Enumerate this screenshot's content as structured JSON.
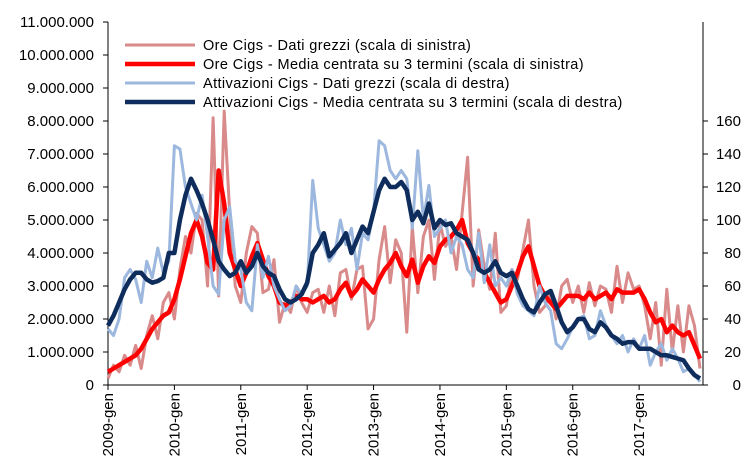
{
  "chart_data": {
    "type": "line",
    "categories": [
      "2009-gen",
      null,
      null,
      null,
      null,
      null,
      null,
      null,
      null,
      null,
      null,
      null,
      "2010-gen",
      null,
      null,
      null,
      null,
      null,
      null,
      null,
      null,
      null,
      null,
      null,
      "2011-gen",
      null,
      null,
      null,
      null,
      null,
      null,
      null,
      null,
      null,
      null,
      null,
      "2012-gen",
      null,
      null,
      null,
      null,
      null,
      null,
      null,
      null,
      null,
      null,
      null,
      "2013-gen",
      null,
      null,
      null,
      null,
      null,
      null,
      null,
      null,
      null,
      null,
      null,
      "2014-gen",
      null,
      null,
      null,
      null,
      null,
      null,
      null,
      null,
      null,
      null,
      null,
      "2015-gen",
      null,
      null,
      null,
      null,
      null,
      null,
      null,
      null,
      null,
      null,
      null,
      "2016-gen",
      null,
      null,
      null,
      null,
      null,
      null,
      null,
      null,
      null,
      null,
      null,
      "2017-gen",
      null,
      null,
      null,
      null,
      null,
      null,
      null,
      null,
      null,
      null,
      null
    ],
    "ylim": [
      0,
      11000000
    ],
    "yticks": [
      0,
      {
        "value": 1000000,
        "label": "1.000.000"
      },
      {
        "value": 2000000,
        "label": "2.000.000"
      },
      {
        "value": 3000000,
        "label": "3.000.000"
      },
      {
        "value": 4000000,
        "label": "4.000.000"
      },
      {
        "value": 5000000,
        "label": "5.000.000"
      },
      {
        "value": 6000000,
        "label": "6.000.000"
      },
      {
        "value": 7000000,
        "label": "7.000.000"
      },
      {
        "value": 8000000,
        "label": "8.000.000"
      },
      {
        "value": 9000000,
        "label": "9.000.000"
      },
      {
        "value": 10000000,
        "label": "10.000.000"
      },
      {
        "value": 11000000,
        "label": "11.000.000"
      }
    ],
    "y2lim": [
      0,
      220
    ],
    "y2ticks": [
      0,
      20,
      40,
      60,
      80,
      100,
      120,
      140,
      160
    ],
    "grid": false,
    "legend": "upper left",
    "series": [
      {
        "name": "Ore Cigs - Dati grezzi (scala di sinistra)",
        "color": "#d98a8a",
        "axis": "y",
        "values": [
          200000,
          600000,
          400000,
          900000,
          600000,
          1200000,
          500000,
          1500000,
          2100000,
          1400000,
          2500000,
          2800000,
          2000000,
          3500000,
          4500000,
          4000000,
          5200000,
          5000000,
          3000000,
          8100000,
          2700000,
          8300000,
          5200000,
          3000000,
          2500000,
          4000000,
          4800000,
          4600000,
          2800000,
          2900000,
          3800000,
          1900000,
          2500000,
          2200000,
          3000000,
          2500000,
          2200000,
          2800000,
          2900000,
          2200000,
          3000000,
          2100000,
          3400000,
          3500000,
          2600000,
          3500000,
          3600000,
          1700000,
          2000000,
          3800000,
          4800000,
          3100000,
          4400000,
          4000000,
          1600000,
          4800000,
          2800000,
          4500000,
          5000000,
          3200000,
          4900000,
          4200000,
          4500000,
          3500000,
          5200000,
          6900000,
          3000000,
          4700000,
          3600000,
          2900000,
          4600000,
          2200000,
          2400000,
          3500000,
          3200000,
          4100000,
          5000000,
          3000000,
          2200000,
          2400000,
          2800000,
          2000000,
          3000000,
          3200000,
          2500000,
          3000000,
          2200000,
          3100000,
          2400000,
          3000000,
          2900000,
          2200000,
          3600000,
          2500000,
          3400000,
          2900000,
          3000000,
          2400000,
          1400000,
          2500000,
          600000,
          2900000,
          1000000,
          2400000,
          1000000,
          2400000,
          1800000,
          500000
        ]
      },
      {
        "name": "Ore Cigs - Media centrata su 3 termini (scala di sinistra)",
        "color": "#ff0000",
        "axis": "y",
        "values": [
          400000,
          500000,
          600000,
          700000,
          800000,
          900000,
          1100000,
          1400000,
          1700000,
          1900000,
          2100000,
          2200000,
          2600000,
          3200000,
          3900000,
          4600000,
          5000000,
          4500000,
          3700000,
          3500000,
          6500000,
          5500000,
          4000000,
          3500000,
          3000000,
          3400000,
          3900000,
          4300000,
          3800000,
          3300000,
          3000000,
          2500000,
          2400000,
          2500000,
          2700000,
          2600000,
          2600000,
          2500000,
          2600000,
          2700000,
          2500000,
          2600000,
          2900000,
          3100000,
          2700000,
          2900000,
          3200000,
          3000000,
          2800000,
          3200000,
          3500000,
          3700000,
          4000000,
          3600000,
          3300000,
          3800000,
          3100000,
          3600000,
          3900000,
          3700000,
          4200000,
          4400000,
          4500000,
          4700000,
          5000000,
          4300000,
          4000000,
          3800000,
          3400000,
          3100000,
          2800000,
          2500000,
          2600000,
          3000000,
          3400000,
          3900000,
          4200000,
          3600000,
          3000000,
          2700000,
          2500000,
          2300000,
          2500000,
          2700000,
          2700000,
          2700000,
          2600000,
          2800000,
          2600000,
          2700000,
          2800000,
          2600000,
          2900000,
          2800000,
          2800000,
          2800000,
          2900000,
          2600000,
          2200000,
          1900000,
          2000000,
          1600000,
          1800000,
          1600000,
          1500000,
          1600000,
          1200000,
          800000
        ]
      },
      {
        "name": "Attivazioni Cigs - Dati grezzi (scala di destra)",
        "color": "#9db8de",
        "axis": "y2",
        "values": [
          34,
          30,
          40,
          65,
          70,
          64,
          50,
          75,
          65,
          83,
          68,
          75,
          145,
          143,
          120,
          110,
          100,
          115,
          90,
          60,
          55,
          100,
          108,
          75,
          70,
          50,
          45,
          85,
          65,
          78,
          60,
          52,
          45,
          48,
          60,
          55,
          60,
          124,
          95,
          85,
          75,
          80,
          100,
          85,
          95,
          70,
          92,
          88,
          105,
          148,
          145,
          130,
          125,
          130,
          125,
          95,
          142,
          100,
          121,
          90,
          95,
          100,
          80,
          90,
          85,
          70,
          65,
          92,
          62,
          85,
          60,
          65,
          60,
          70,
          55,
          48,
          45,
          42,
          60,
          50,
          45,
          25,
          22,
          28,
          35,
          40,
          42,
          28,
          30,
          45,
          36,
          30,
          25,
          30,
          20,
          28,
          22,
          30,
          12,
          20,
          25,
          15,
          22,
          16,
          8,
          10,
          6,
          2
        ]
      },
      {
        "name": "Attivazioni Cigs - Media centrata su 3 termini (scala di destra)",
        "color": "#0e2d5c",
        "axis": "y2",
        "values": [
          36,
          42,
          50,
          58,
          64,
          68,
          68,
          64,
          62,
          63,
          65,
          80,
          80,
          100,
          115,
          125,
          118,
          110,
          100,
          88,
          75,
          70,
          66,
          68,
          75,
          68,
          72,
          80,
          72,
          68,
          66,
          58,
          52,
          50,
          52,
          55,
          62,
          80,
          85,
          92,
          78,
          82,
          86,
          92,
          80,
          88,
          96,
          92,
          105,
          118,
          125,
          120,
          120,
          123,
          118,
          100,
          105,
          98,
          110,
          95,
          100,
          97,
          98,
          92,
          90,
          88,
          80,
          70,
          68,
          70,
          75,
          68,
          66,
          68,
          60,
          52,
          46,
          44,
          50,
          55,
          57,
          48,
          38,
          32,
          35,
          40,
          40,
          34,
          32,
          38,
          35,
          30,
          28,
          25,
          26,
          26,
          22,
          22,
          22,
          20,
          18,
          18,
          17,
          16,
          15,
          10,
          6,
          4
        ]
      }
    ]
  }
}
